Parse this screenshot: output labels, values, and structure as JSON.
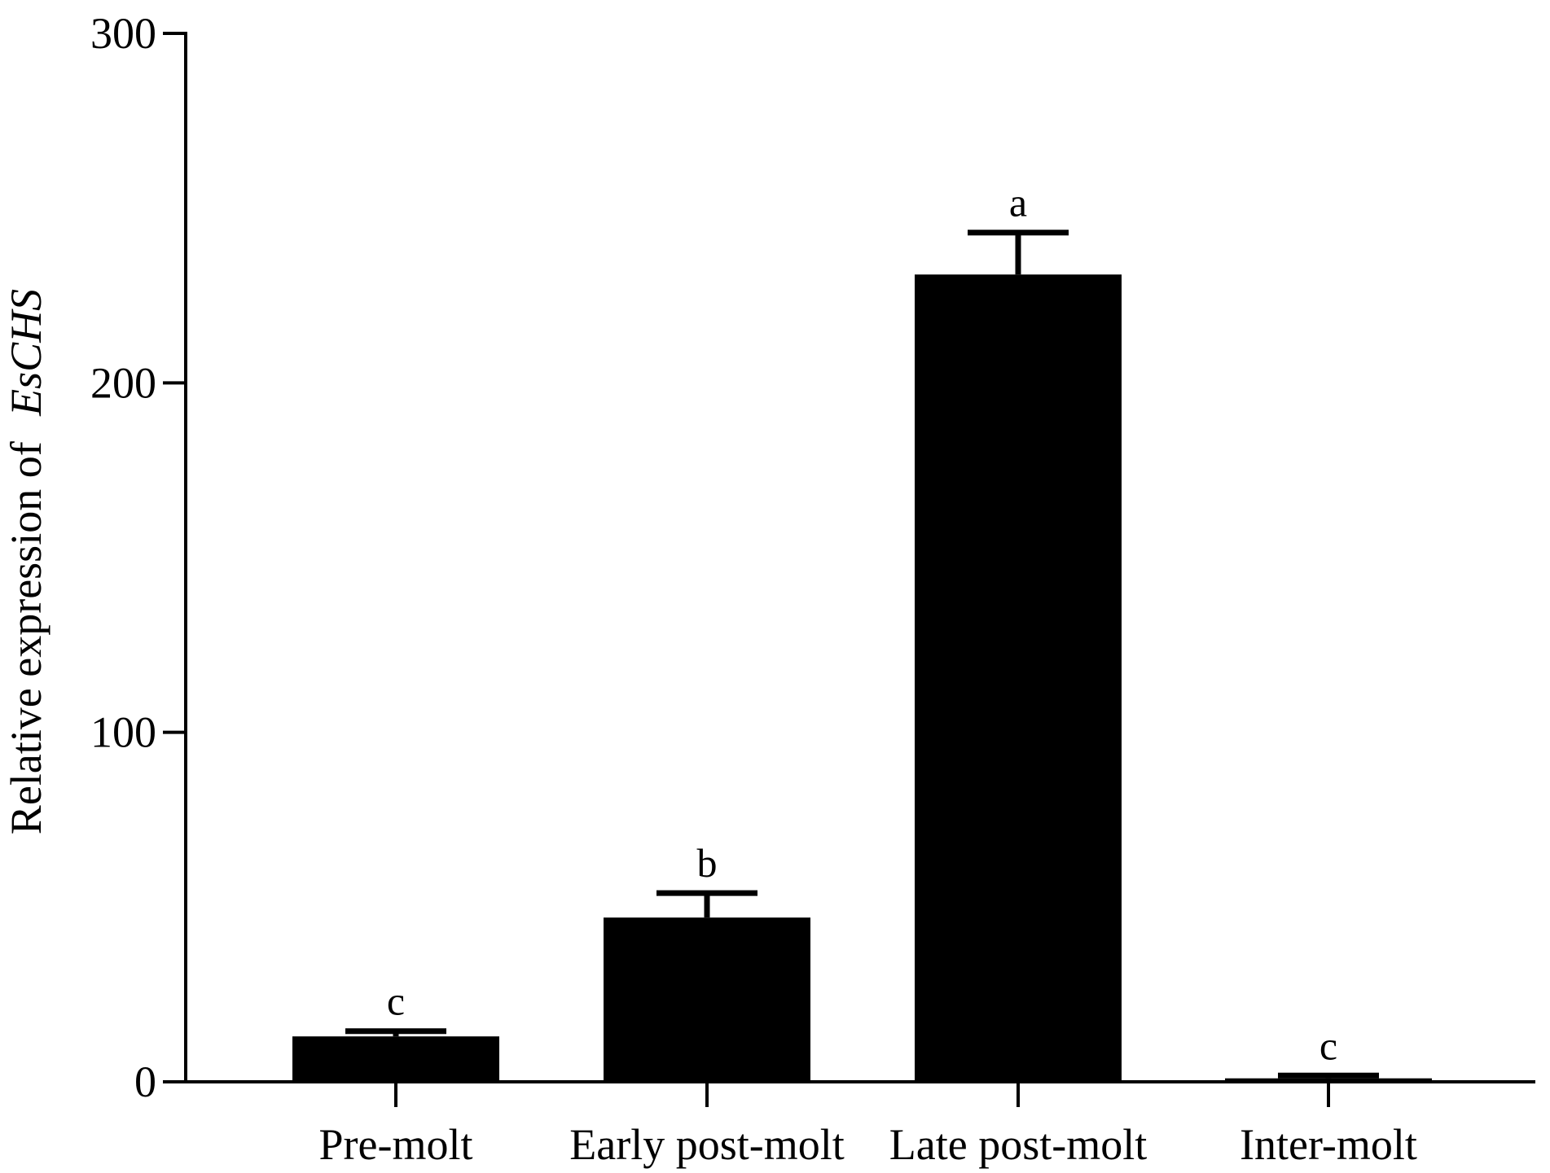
{
  "chart_data": {
    "type": "bar",
    "categories": [
      "Pre-molt",
      "Early post-molt",
      "Late post-molt",
      "Inter-molt"
    ],
    "values": [
      13,
      47,
      231,
      1
    ],
    "errors": [
      1.5,
      7,
      12,
      0.8
    ],
    "significance": [
      "c",
      "b",
      "a",
      "c"
    ],
    "ylabel_prefix": "Relative expression of",
    "ylabel_gene": "EsCHS",
    "xlabel": "",
    "ylim": [
      0,
      300
    ],
    "yticks": [
      "0",
      "100",
      "200",
      "300"
    ],
    "grid": false,
    "bar_color": "#000000"
  }
}
